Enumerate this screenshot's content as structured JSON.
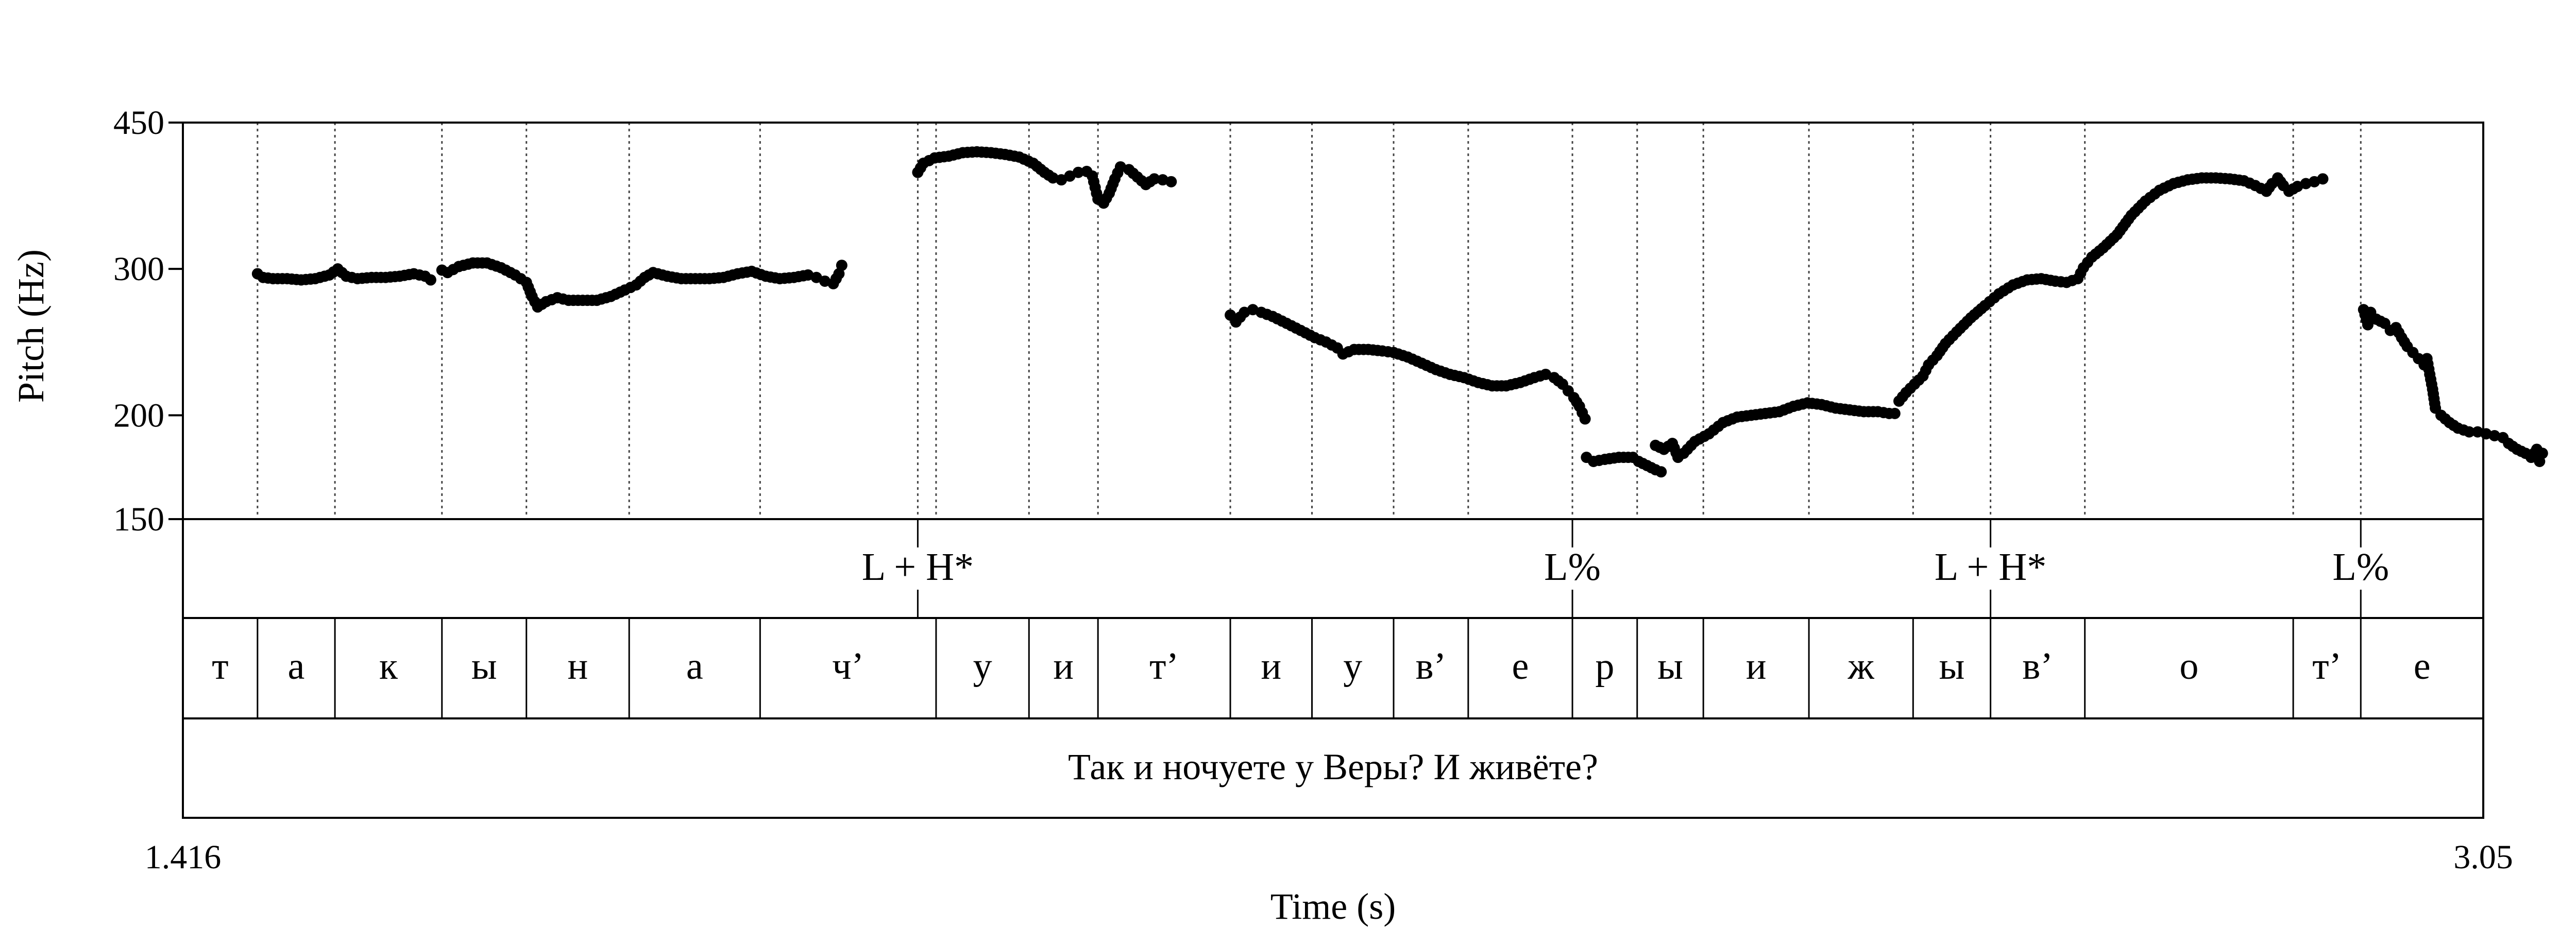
{
  "chart_data": {
    "type": "scatter",
    "title": "",
    "xlabel": "Time (s)",
    "ylabel": "Pitch (Hz)",
    "xlim": [
      1.416,
      3.05
    ],
    "ylim": [
      150,
      450
    ],
    "xtick_labels": [
      "1.416",
      "3.05"
    ],
    "yticks": [
      150,
      200,
      300,
      450
    ],
    "ytick_labels": [
      "150",
      "200",
      "300",
      "450"
    ],
    "y_scale": "log",
    "grid": false,
    "tones": [
      {
        "t": 1.938,
        "label": "L + H*"
      },
      {
        "t": 2.403,
        "label": "L%"
      },
      {
        "t": 2.7,
        "label": "L + H*"
      },
      {
        "t": 2.963,
        "label": "L%"
      }
    ],
    "segments": [
      {
        "start": 1.416,
        "end": 1.469,
        "label": "т"
      },
      {
        "start": 1.469,
        "end": 1.524,
        "label": "а"
      },
      {
        "start": 1.524,
        "end": 1.6,
        "label": "к"
      },
      {
        "start": 1.6,
        "end": 1.66,
        "label": "ы"
      },
      {
        "start": 1.66,
        "end": 1.733,
        "label": "н"
      },
      {
        "start": 1.733,
        "end": 1.826,
        "label": "а"
      },
      {
        "start": 1.826,
        "end": 1.951,
        "label": "ч’"
      },
      {
        "start": 1.951,
        "end": 2.017,
        "label": "у"
      },
      {
        "start": 2.017,
        "end": 2.066,
        "label": "и"
      },
      {
        "start": 2.066,
        "end": 2.16,
        "label": "т’"
      },
      {
        "start": 2.16,
        "end": 2.218,
        "label": "и"
      },
      {
        "start": 2.218,
        "end": 2.276,
        "label": "у"
      },
      {
        "start": 2.276,
        "end": 2.329,
        "label": "в’"
      },
      {
        "start": 2.329,
        "end": 2.403,
        "label": "е"
      },
      {
        "start": 2.403,
        "end": 2.449,
        "label": "р"
      },
      {
        "start": 2.449,
        "end": 2.496,
        "label": "ы"
      },
      {
        "start": 2.496,
        "end": 2.571,
        "label": "и"
      },
      {
        "start": 2.571,
        "end": 2.645,
        "label": "ж"
      },
      {
        "start": 2.645,
        "end": 2.7,
        "label": "ы"
      },
      {
        "start": 2.7,
        "end": 2.767,
        "label": "в’"
      },
      {
        "start": 2.767,
        "end": 2.915,
        "label": "о"
      },
      {
        "start": 2.915,
        "end": 3.05,
        "label": "т’"
      }
    ],
    "last_segment_label": "е",
    "sentence": "Так и ночуете у Веры? И живёте?",
    "series": [
      {
        "values": [
          [
            1.469,
            296
          ],
          [
            1.473,
            293
          ],
          [
            1.48,
            292
          ],
          [
            1.49,
            292
          ],
          [
            1.5,
            291
          ],
          [
            1.51,
            292
          ],
          [
            1.52,
            295
          ],
          [
            1.526,
            300
          ],
          [
            1.532,
            294
          ],
          [
            1.54,
            292
          ],
          [
            1.55,
            293
          ],
          [
            1.56,
            293
          ],
          [
            1.57,
            294
          ],
          [
            1.58,
            296
          ],
          [
            1.588,
            294
          ],
          [
            1.592,
            291
          ]
        ]
      },
      {
        "values": [
          [
            1.6,
            299
          ],
          [
            1.604,
            297
          ],
          [
            1.612,
            302
          ],
          [
            1.622,
            305
          ],
          [
            1.632,
            305
          ],
          [
            1.642,
            301
          ],
          [
            1.652,
            295
          ],
          [
            1.66,
            289
          ],
          [
            1.664,
            278
          ],
          [
            1.668,
            270
          ],
          [
            1.674,
            274
          ],
          [
            1.682,
            277
          ],
          [
            1.69,
            275
          ],
          [
            1.7,
            275
          ],
          [
            1.71,
            275
          ],
          [
            1.72,
            278
          ],
          [
            1.73,
            283
          ],
          [
            1.738,
            287
          ],
          [
            1.744,
            293
          ],
          [
            1.75,
            297
          ],
          [
            1.76,
            294
          ],
          [
            1.77,
            292
          ],
          [
            1.78,
            292
          ],
          [
            1.79,
            292
          ],
          [
            1.8,
            293
          ],
          [
            1.81,
            296
          ],
          [
            1.82,
            298
          ],
          [
            1.83,
            294
          ],
          [
            1.84,
            292
          ],
          [
            1.85,
            293
          ],
          [
            1.86,
            295
          ],
          [
            1.866,
            293
          ],
          [
            1.872,
            290
          ],
          [
            1.878,
            288
          ],
          [
            1.882,
            296
          ],
          [
            1.884,
            303
          ]
        ]
      },
      {
        "values": [
          [
            1.938,
            392
          ],
          [
            1.942,
            402
          ],
          [
            1.95,
            408
          ],
          [
            1.96,
            410
          ],
          [
            1.97,
            414
          ],
          [
            1.98,
            415
          ],
          [
            1.99,
            414
          ],
          [
            2.0,
            412
          ],
          [
            2.01,
            409
          ],
          [
            2.02,
            402
          ],
          [
            2.028,
            392
          ],
          [
            2.034,
            386
          ],
          [
            2.04,
            384
          ],
          [
            2.046,
            388
          ],
          [
            2.052,
            392
          ],
          [
            2.058,
            393
          ],
          [
            2.062,
            388
          ],
          [
            2.064,
            376
          ],
          [
            2.066,
            364
          ],
          [
            2.07,
            360
          ],
          [
            2.074,
            370
          ],
          [
            2.078,
            385
          ],
          [
            2.082,
            398
          ],
          [
            2.088,
            395
          ],
          [
            2.094,
            387
          ],
          [
            2.1,
            379
          ],
          [
            2.106,
            385
          ],
          [
            2.112,
            384
          ],
          [
            2.118,
            382
          ]
        ]
      },
      {
        "values": [
          [
            2.16,
            264
          ],
          [
            2.164,
            259
          ],
          [
            2.17,
            266
          ],
          [
            2.176,
            268
          ],
          [
            2.182,
            266
          ],
          [
            2.19,
            263
          ],
          [
            2.2,
            258
          ],
          [
            2.21,
            253
          ],
          [
            2.22,
            248
          ],
          [
            2.228,
            245
          ],
          [
            2.236,
            241
          ],
          [
            2.24,
            237
          ],
          [
            2.248,
            240
          ],
          [
            2.258,
            240
          ],
          [
            2.268,
            239
          ],
          [
            2.276,
            238
          ],
          [
            2.286,
            235
          ],
          [
            2.296,
            231
          ],
          [
            2.306,
            227
          ],
          [
            2.316,
            224
          ],
          [
            2.326,
            222
          ],
          [
            2.336,
            219
          ],
          [
            2.346,
            217
          ],
          [
            2.356,
            217
          ],
          [
            2.366,
            219
          ],
          [
            2.376,
            222
          ],
          [
            2.384,
            224
          ],
          [
            2.39,
            222
          ],
          [
            2.396,
            218
          ],
          [
            2.4,
            214
          ],
          [
            2.404,
            210
          ],
          [
            2.408,
            205
          ],
          [
            2.412,
            198
          ]
        ]
      },
      {
        "values": [
          [
            2.413,
            178
          ],
          [
            2.418,
            176
          ],
          [
            2.426,
            177
          ],
          [
            2.436,
            178
          ],
          [
            2.446,
            178
          ],
          [
            2.45,
            176
          ],
          [
            2.456,
            174
          ],
          [
            2.462,
            172
          ],
          [
            2.466,
            171
          ]
        ]
      },
      {
        "values": [
          [
            2.462,
            184
          ],
          [
            2.468,
            182
          ],
          [
            2.474,
            185
          ],
          [
            2.478,
            178
          ],
          [
            2.482,
            180
          ],
          [
            2.49,
            186
          ],
          [
            2.5,
            190
          ],
          [
            2.51,
            196
          ],
          [
            2.52,
            199
          ],
          [
            2.53,
            200
          ],
          [
            2.54,
            201
          ],
          [
            2.55,
            202
          ],
          [
            2.56,
            205
          ],
          [
            2.57,
            207
          ],
          [
            2.58,
            206
          ],
          [
            2.59,
            204
          ],
          [
            2.6,
            203
          ],
          [
            2.61,
            202
          ],
          [
            2.62,
            202
          ],
          [
            2.628,
            201
          ],
          [
            2.632,
            201
          ]
        ]
      },
      {
        "values": [
          [
            2.635,
            208
          ],
          [
            2.64,
            213
          ],
          [
            2.646,
            218
          ],
          [
            2.652,
            223
          ],
          [
            2.656,
            230
          ],
          [
            2.662,
            236
          ],
          [
            2.668,
            244
          ],
          [
            2.676,
            252
          ],
          [
            2.686,
            262
          ],
          [
            2.696,
            271
          ],
          [
            2.706,
            280
          ],
          [
            2.716,
            287
          ],
          [
            2.726,
            291
          ],
          [
            2.736,
            292
          ],
          [
            2.746,
            290
          ],
          [
            2.754,
            289
          ],
          [
            2.762,
            292
          ],
          [
            2.766,
            301
          ],
          [
            2.772,
            310
          ],
          [
            2.78,
            318
          ],
          [
            2.79,
            330
          ],
          [
            2.8,
            348
          ],
          [
            2.81,
            362
          ],
          [
            2.82,
            373
          ],
          [
            2.83,
            380
          ],
          [
            2.84,
            384
          ],
          [
            2.85,
            386
          ],
          [
            2.86,
            386
          ],
          [
            2.87,
            385
          ],
          [
            2.88,
            383
          ],
          [
            2.888,
            378
          ],
          [
            2.896,
            372
          ],
          [
            2.9,
            380
          ],
          [
            2.904,
            386
          ],
          [
            2.908,
            378
          ],
          [
            2.912,
            372
          ],
          [
            2.918,
            377
          ],
          [
            2.924,
            380
          ],
          [
            2.93,
            382
          ],
          [
            2.936,
            385
          ]
        ]
      },
      {
        "values": [
          [
            2.965,
            268
          ],
          [
            2.968,
            257
          ],
          [
            2.97,
            266
          ],
          [
            2.974,
            261
          ],
          [
            2.98,
            258
          ],
          [
            2.984,
            253
          ],
          [
            2.988,
            255
          ],
          [
            2.992,
            248
          ],
          [
            2.996,
            242
          ],
          [
            3.0,
            238
          ],
          [
            3.004,
            234
          ],
          [
            3.008,
            230
          ],
          [
            3.01,
            234
          ],
          [
            3.012,
            224
          ],
          [
            3.014,
            215
          ],
          [
            3.016,
            204
          ],
          [
            3.02,
            200
          ],
          [
            3.026,
            196
          ],
          [
            3.032,
            193
          ],
          [
            3.04,
            191
          ],
          [
            3.046,
            191
          ],
          [
            3.052,
            190
          ],
          [
            3.058,
            189
          ],
          [
            3.064,
            188
          ],
          [
            3.068,
            185
          ],
          [
            3.074,
            182
          ],
          [
            3.08,
            180
          ],
          [
            3.084,
            178
          ],
          [
            3.088,
            182
          ],
          [
            3.09,
            176
          ],
          [
            3.092,
            180
          ]
        ]
      }
    ]
  }
}
